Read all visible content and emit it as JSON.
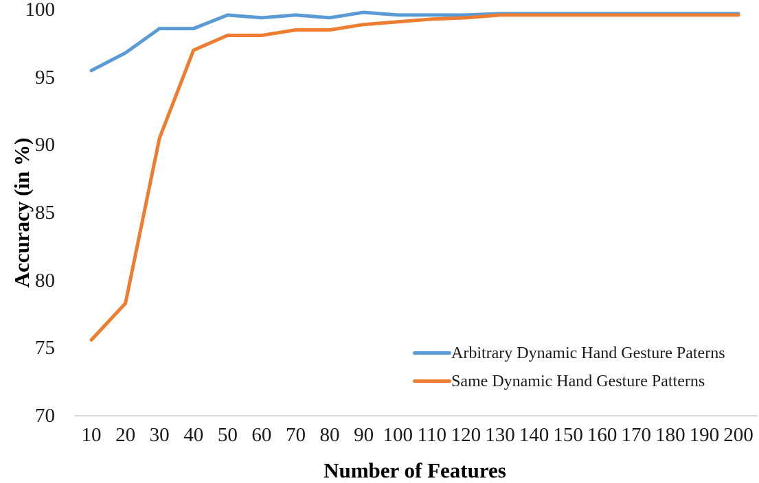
{
  "chart_data": {
    "type": "line",
    "title": "",
    "xlabel": "Number of Features",
    "ylabel": "Accuracy (in %)",
    "x": [
      10,
      20,
      30,
      40,
      50,
      60,
      70,
      80,
      90,
      100,
      110,
      120,
      130,
      140,
      150,
      160,
      170,
      180,
      190,
      200
    ],
    "xtick_labels": [
      "10",
      "20",
      "30",
      "40",
      "50",
      "60",
      "70",
      "80",
      "90",
      "100",
      "110",
      "120",
      "130",
      "140",
      "150",
      "160",
      "170",
      "180",
      "190",
      "200"
    ],
    "ylim": [
      70,
      100
    ],
    "yticks": [
      70,
      75,
      80,
      85,
      90,
      95,
      100
    ],
    "grid": false,
    "background_color": "#ffffff",
    "axis_line_color": "#d9d9d9",
    "text_color": "#1a1a1a",
    "legend_position": "inside-bottom-right",
    "series": [
      {
        "name": "Arbitrary Dynamic Hand Gesture Paterns",
        "color": "#5B9BD5",
        "values": [
          95.5,
          96.8,
          98.6,
          98.6,
          99.6,
          99.4,
          99.6,
          99.4,
          99.8,
          99.6,
          99.6,
          99.6,
          99.7,
          99.7,
          99.7,
          99.7,
          99.7,
          99.7,
          99.7,
          99.7
        ]
      },
      {
        "name": "Same Dynamic Hand Gesture Patterns",
        "color": "#ED7D31",
        "values": [
          75.6,
          78.3,
          90.5,
          97.0,
          98.1,
          98.1,
          98.5,
          98.5,
          98.9,
          99.1,
          99.3,
          99.4,
          99.6,
          99.6,
          99.6,
          99.6,
          99.6,
          99.6,
          99.6,
          99.6
        ]
      }
    ]
  }
}
